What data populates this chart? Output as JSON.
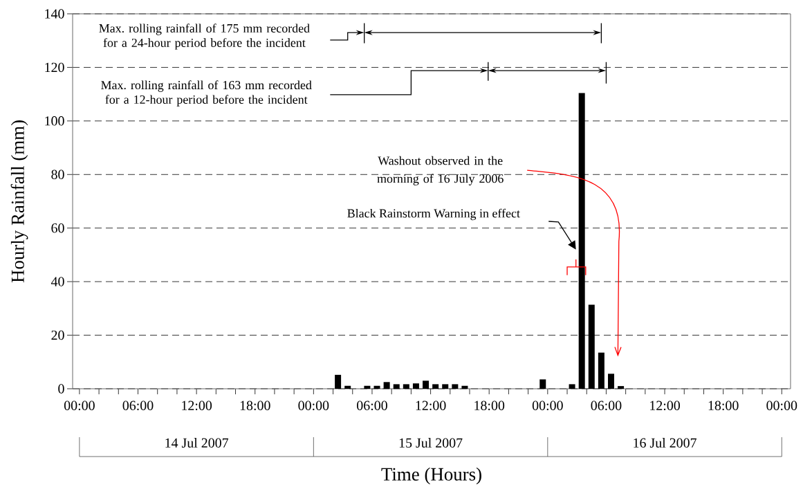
{
  "chart_data": {
    "type": "bar",
    "xlabel": "Time (Hours)",
    "ylabel": "Hourly Rainfall (mm)",
    "x": [
      "2007-07-15T02:30",
      "2007-07-15T03:30",
      "2007-07-15T05:30",
      "2007-07-15T06:30",
      "2007-07-15T07:30",
      "2007-07-15T08:30",
      "2007-07-15T09:30",
      "2007-07-15T10:30",
      "2007-07-15T11:30",
      "2007-07-15T12:30",
      "2007-07-15T13:30",
      "2007-07-15T14:30",
      "2007-07-15T15:30",
      "2007-07-15T23:30",
      "2007-07-16T02:30",
      "2007-07-16T03:30",
      "2007-07-16T04:30",
      "2007-07-16T05:30",
      "2007-07-16T06:30",
      "2007-07-16T07:30"
    ],
    "values": [
      5.2,
      1.1,
      1.1,
      1.1,
      2.5,
      1.7,
      1.7,
      2.0,
      3.0,
      1.7,
      1.7,
      1.7,
      1.1,
      3.5,
      1.7,
      110.4,
      31.4,
      13.5,
      5.6,
      1.0
    ],
    "color": "#000000",
    "xlim": [
      "2007-07-13T23:18",
      "2007-07-17T00:54"
    ],
    "ylim": [
      0,
      140
    ],
    "yticks": [
      0,
      20,
      40,
      60,
      80,
      100,
      120,
      140
    ],
    "xticks": [
      {
        "value": "2007-07-14T00:00",
        "label": "00:00"
      },
      {
        "value": "2007-07-14T02:00",
        "label": null
      },
      {
        "value": "2007-07-14T04:00",
        "label": null
      },
      {
        "value": "2007-07-14T06:00",
        "label": "06:00"
      },
      {
        "value": "2007-07-14T08:00",
        "label": null
      },
      {
        "value": "2007-07-14T10:00",
        "label": null
      },
      {
        "value": "2007-07-14T12:00",
        "label": "12:00"
      },
      {
        "value": "2007-07-14T14:00",
        "label": null
      },
      {
        "value": "2007-07-14T16:00",
        "label": null
      },
      {
        "value": "2007-07-14T18:00",
        "label": "18:00"
      },
      {
        "value": "2007-07-14T20:00",
        "label": null
      },
      {
        "value": "2007-07-14T22:00",
        "label": null
      },
      {
        "value": "2007-07-15T00:00",
        "label": "00:00"
      },
      {
        "value": "2007-07-15T02:00",
        "label": null
      },
      {
        "value": "2007-07-15T04:00",
        "label": null
      },
      {
        "value": "2007-07-15T06:00",
        "label": "06:00"
      },
      {
        "value": "2007-07-15T08:00",
        "label": null
      },
      {
        "value": "2007-07-15T10:00",
        "label": null
      },
      {
        "value": "2007-07-15T12:00",
        "label": "12:00"
      },
      {
        "value": "2007-07-15T14:00",
        "label": null
      },
      {
        "value": "2007-07-15T16:00",
        "label": null
      },
      {
        "value": "2007-07-15T18:00",
        "label": "18:00"
      },
      {
        "value": "2007-07-15T20:00",
        "label": null
      },
      {
        "value": "2007-07-15T22:00",
        "label": null
      },
      {
        "value": "2007-07-16T00:00",
        "label": "00:00"
      },
      {
        "value": "2007-07-16T02:00",
        "label": null
      },
      {
        "value": "2007-07-16T04:00",
        "label": null
      },
      {
        "value": "2007-07-16T06:00",
        "label": "06:00"
      },
      {
        "value": "2007-07-16T08:00",
        "label": null
      },
      {
        "value": "2007-07-16T10:00",
        "label": null
      },
      {
        "value": "2007-07-16T12:00",
        "label": "12:00"
      },
      {
        "value": "2007-07-16T14:00",
        "label": null
      },
      {
        "value": "2007-07-16T16:00",
        "label": null
      },
      {
        "value": "2007-07-16T18:00",
        "label": "18:00"
      },
      {
        "value": "2007-07-16T20:00",
        "label": null
      },
      {
        "value": "2007-07-16T22:00",
        "label": null
      },
      {
        "value": "2007-07-17T00:00",
        "label": "00:00"
      }
    ],
    "grid": "y",
    "annotations": [
      "Max. rolling rainfall of 175 mm recorded for a 24-hour period before the incident",
      "Max. rolling rainfall of 163 mm recorded for a 12-hour period before the incident",
      "Washout observed in the morning of 16 July 2006",
      "Black Rainstorm Warning in effect",
      "14 Jul 2007",
      "15 Jul 2007",
      "16 Jul 2007"
    ]
  }
}
